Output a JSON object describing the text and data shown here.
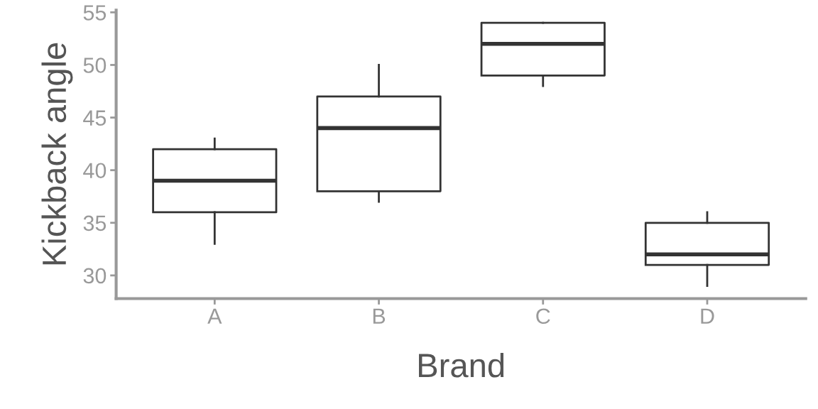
{
  "chart_data": {
    "type": "box",
    "xlabel": "Brand",
    "ylabel": "Kickback angle",
    "categories": [
      "A",
      "B",
      "C",
      "D"
    ],
    "boxes": [
      {
        "low": 33,
        "q1": 36,
        "median": 39,
        "q3": 42,
        "high": 43
      },
      {
        "low": 37,
        "q1": 38,
        "median": 44,
        "q3": 47,
        "high": 50
      },
      {
        "low": 48,
        "q1": 49,
        "median": 52,
        "q3": 54,
        "high": 54
      },
      {
        "low": 29,
        "q1": 31,
        "median": 32,
        "q3": 35,
        "high": 36
      }
    ],
    "color": "#333333",
    "ylim": [
      27.8,
      55.2
    ],
    "yticks": [
      30,
      35,
      40,
      45,
      50,
      55
    ],
    "grid": false
  }
}
